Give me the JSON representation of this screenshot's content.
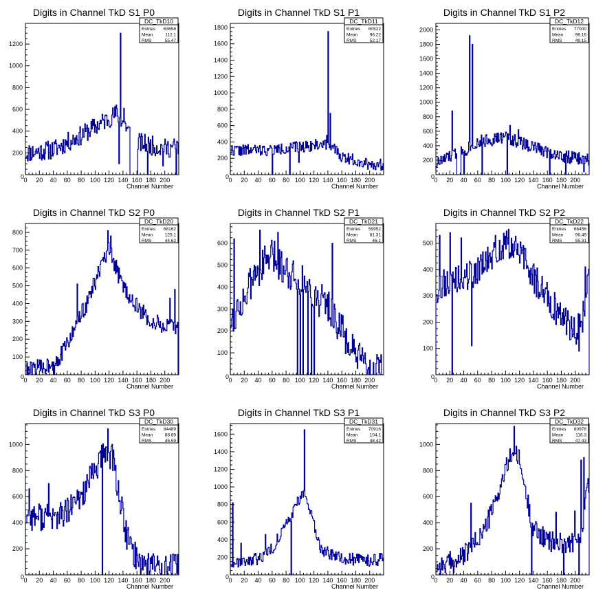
{
  "chart_data": [
    {
      "type": "bar",
      "title": "Digits in Channel TkD S1 P0",
      "xlabel": "Channel Number",
      "ylabel": "",
      "xlim": [
        0,
        220
      ],
      "ylim": [
        0,
        1390
      ],
      "xticks": [
        0,
        20,
        40,
        60,
        80,
        100,
        120,
        140,
        160,
        180,
        200
      ],
      "yticks": [
        200,
        400,
        600,
        800,
        1000,
        1200
      ],
      "stats": {
        "name": "DC_TkD10",
        "rows": [
          [
            "Entries",
            "63658"
          ],
          [
            "Mean",
            "112.1"
          ],
          [
            "RMS",
            "55.47"
          ]
        ]
      },
      "shape": "ramp",
      "fill": 320,
      "knots": [
        [
          0,
          200
        ],
        [
          40,
          230
        ],
        [
          80,
          360
        ],
        [
          120,
          520
        ],
        [
          132,
          560
        ],
        [
          160,
          300
        ],
        [
          200,
          240
        ],
        [
          220,
          260
        ]
      ],
      "spikes": [
        [
          136,
          1300
        ],
        [
          130,
          640
        ],
        [
          141,
          610
        ],
        [
          134,
          100
        ],
        [
          160,
          0
        ],
        [
          175,
          0
        ],
        [
          197,
          80
        ],
        [
          216,
          0
        ]
      ],
      "zeros": [
        [
          150,
          160
        ]
      ],
      "noise": 90,
      "seed": 11
    },
    {
      "type": "bar",
      "title": "Digits in Channel TkD S1 P1",
      "xlabel": "Channel Number",
      "ylabel": "",
      "xlim": [
        0,
        220
      ],
      "ylim": [
        0,
        1850
      ],
      "xticks": [
        0,
        20,
        40,
        60,
        80,
        100,
        120,
        140,
        160,
        180,
        200
      ],
      "yticks": [
        200,
        400,
        600,
        800,
        1000,
        1200,
        1400,
        1600,
        1800
      ],
      "stats": {
        "name": "DC_TkD11",
        "rows": [
          [
            "Entries",
            "60522"
          ],
          [
            "Mean",
            "96.22"
          ],
          [
            "RMS",
            "52.17"
          ]
        ]
      },
      "shape": "flat",
      "fill": 260,
      "knots": [
        [
          0,
          300
        ],
        [
          60,
          300
        ],
        [
          120,
          360
        ],
        [
          140,
          380
        ],
        [
          160,
          220
        ],
        [
          200,
          130
        ],
        [
          220,
          120
        ]
      ],
      "spikes": [
        [
          140,
          1750
        ],
        [
          143,
          750
        ],
        [
          138,
          480
        ],
        [
          60,
          0
        ],
        [
          85,
          0
        ],
        [
          98,
          150
        ]
      ],
      "zeros": [],
      "noise": 70,
      "seed": 22
    },
    {
      "type": "bar",
      "title": "Digits in Channel TkD S1 P2",
      "xlabel": "Channel Number",
      "ylabel": "",
      "xlim": [
        0,
        220
      ],
      "ylim": [
        0,
        2090
      ],
      "xticks": [
        0,
        20,
        40,
        60,
        80,
        100,
        120,
        140,
        160,
        180,
        200
      ],
      "yticks": [
        200,
        400,
        600,
        800,
        1000,
        1200,
        1400,
        1600,
        1800,
        2000
      ],
      "stats": {
        "name": "DC_TkD12",
        "rows": [
          [
            "Entries",
            "77000"
          ],
          [
            "Mean",
            "96.16"
          ],
          [
            "RMS",
            "49.15"
          ]
        ]
      },
      "shape": "hump",
      "fill": 240,
      "knots": [
        [
          0,
          150
        ],
        [
          20,
          250
        ],
        [
          40,
          330
        ],
        [
          60,
          450
        ],
        [
          100,
          520
        ],
        [
          140,
          380
        ],
        [
          180,
          260
        ],
        [
          220,
          200
        ]
      ],
      "spikes": [
        [
          48,
          1920
        ],
        [
          52,
          1800
        ],
        [
          23,
          880
        ],
        [
          106,
          680
        ],
        [
          118,
          620
        ],
        [
          40,
          0
        ],
        [
          66,
          0
        ],
        [
          102,
          0
        ],
        [
          163,
          0
        ],
        [
          186,
          0
        ],
        [
          212,
          40
        ]
      ],
      "zeros": [
        [
          30,
          36
        ]
      ],
      "noise": 90,
      "seed": 33
    },
    {
      "type": "bar",
      "title": "Digits in Channel TkD S2 P0",
      "xlabel": "Channel Number",
      "ylabel": "",
      "xlim": [
        0,
        220
      ],
      "ylim": [
        0,
        850
      ],
      "xticks": [
        0,
        20,
        40,
        60,
        80,
        100,
        120,
        140,
        160,
        180,
        200
      ],
      "yticks": [
        100,
        200,
        300,
        400,
        500,
        600,
        700,
        800
      ],
      "stats": {
        "name": "DC_TkD20",
        "rows": [
          [
            "Entries",
            "68162"
          ],
          [
            "Mean",
            "125.1"
          ],
          [
            "RMS",
            "44.62"
          ]
        ]
      },
      "shape": "bell",
      "fill": 150,
      "knots": [
        [
          0,
          20
        ],
        [
          30,
          50
        ],
        [
          50,
          100
        ],
        [
          70,
          250
        ],
        [
          90,
          420
        ],
        [
          110,
          620
        ],
        [
          120,
          700
        ],
        [
          140,
          500
        ],
        [
          160,
          380
        ],
        [
          180,
          300
        ],
        [
          200,
          270
        ],
        [
          220,
          260
        ]
      ],
      "spikes": [
        [
          118,
          810
        ],
        [
          122,
          780
        ],
        [
          74,
          510
        ],
        [
          41,
          0
        ],
        [
          207,
          430
        ],
        [
          214,
          480
        ],
        [
          219,
          0
        ]
      ],
      "zeros": [],
      "noise": 50,
      "seed": 44
    },
    {
      "type": "bar",
      "title": "Digits in Channel TkD S2 P1",
      "xlabel": "Channel Number",
      "ylabel": "",
      "xlim": [
        0,
        220
      ],
      "ylim": [
        0,
        690
      ],
      "xticks": [
        0,
        20,
        40,
        60,
        80,
        100,
        120,
        140,
        160,
        180,
        200
      ],
      "yticks": [
        100,
        200,
        300,
        400,
        500,
        600
      ],
      "stats": {
        "name": "DC_TkD21",
        "rows": [
          [
            "Entries",
            "59952"
          ],
          [
            "Mean",
            "81.31"
          ],
          [
            "RMS",
            "46.1"
          ]
        ]
      },
      "shape": "hump",
      "fill": 150,
      "knots": [
        [
          0,
          250
        ],
        [
          20,
          350
        ],
        [
          40,
          480
        ],
        [
          60,
          540
        ],
        [
          80,
          480
        ],
        [
          100,
          440
        ],
        [
          120,
          360
        ],
        [
          140,
          320
        ],
        [
          160,
          200
        ],
        [
          180,
          80
        ],
        [
          200,
          20
        ],
        [
          220,
          10
        ]
      ],
      "spikes": [
        [
          5,
          620
        ],
        [
          42,
          660
        ],
        [
          68,
          650
        ],
        [
          146,
          600
        ],
        [
          96,
          0
        ],
        [
          100,
          0
        ],
        [
          104,
          0
        ],
        [
          111,
          0
        ],
        [
          116,
          0
        ],
        [
          120,
          0
        ]
      ],
      "zeros": [],
      "noise": 80,
      "seed": 55
    },
    {
      "type": "bar",
      "title": "Digits in Channel TkD S2 P2",
      "xlabel": "Channel Number",
      "ylabel": "",
      "xlim": [
        0,
        220
      ],
      "ylim": [
        0,
        575
      ],
      "xticks": [
        0,
        20,
        40,
        60,
        80,
        100,
        120,
        140,
        160,
        180,
        200
      ],
      "yticks": [
        100,
        200,
        300,
        400,
        500
      ],
      "stats": {
        "name": "DC_TkD22",
        "rows": [
          [
            "Entries",
            "66456"
          ],
          [
            "Mean",
            "96.49"
          ],
          [
            "RMS",
            "55.31"
          ]
        ]
      },
      "shape": "hump",
      "fill": 120,
      "knots": [
        [
          0,
          330
        ],
        [
          20,
          360
        ],
        [
          40,
          360
        ],
        [
          60,
          400
        ],
        [
          80,
          440
        ],
        [
          100,
          500
        ],
        [
          120,
          470
        ],
        [
          140,
          370
        ],
        [
          160,
          300
        ],
        [
          180,
          220
        ],
        [
          200,
          170
        ],
        [
          210,
          200
        ],
        [
          220,
          400
        ]
      ],
      "spikes": [
        [
          5,
          530
        ],
        [
          23,
          0
        ],
        [
          20,
          540
        ],
        [
          36,
          520
        ],
        [
          51,
          110
        ],
        [
          85,
          530
        ],
        [
          205,
          90
        ],
        [
          214,
          410
        ]
      ],
      "zeros": [],
      "noise": 60,
      "seed": 66
    },
    {
      "type": "bar",
      "title": "Digits in Channel TkD S3 P0",
      "xlabel": "Channel Number",
      "ylabel": "",
      "xlim": [
        0,
        220
      ],
      "ylim": [
        0,
        1160
      ],
      "xticks": [
        0,
        20,
        40,
        60,
        80,
        100,
        120,
        140,
        160,
        180,
        200
      ],
      "yticks": [
        200,
        400,
        600,
        800,
        1000
      ],
      "stats": {
        "name": "DC_TkD30",
        "rows": [
          [
            "Entries",
            "84489"
          ],
          [
            "Mean",
            "88.69"
          ],
          [
            "RMS",
            "45.59"
          ]
        ]
      },
      "shape": "skew",
      "fill": 320,
      "knots": [
        [
          0,
          450
        ],
        [
          20,
          450
        ],
        [
          40,
          430
        ],
        [
          60,
          480
        ],
        [
          80,
          600
        ],
        [
          100,
          800
        ],
        [
          115,
          950
        ],
        [
          125,
          900
        ],
        [
          135,
          600
        ],
        [
          145,
          300
        ],
        [
          160,
          120
        ],
        [
          180,
          80
        ],
        [
          200,
          60
        ],
        [
          220,
          50
        ]
      ],
      "spikes": [
        [
          5,
          660
        ],
        [
          110,
          0
        ],
        [
          118,
          1120
        ],
        [
          33,
          700
        ]
      ],
      "zeros": [],
      "noise": 110,
      "seed": 77
    },
    {
      "type": "bar",
      "title": "Digits in Channel TkD S3 P1",
      "xlabel": "Channel Number",
      "ylabel": "",
      "xlim": [
        0,
        220
      ],
      "ylim": [
        0,
        1720
      ],
      "xticks": [
        0,
        20,
        40,
        60,
        80,
        100,
        120,
        140,
        160,
        180,
        200
      ],
      "yticks": [
        200,
        400,
        600,
        800,
        1000,
        1200,
        1400,
        1600
      ],
      "stats": {
        "name": "DC_TkD31",
        "rows": [
          [
            "Entries",
            "70916"
          ],
          [
            "Mean",
            "104.1"
          ],
          [
            "RMS",
            "48.42"
          ]
        ]
      },
      "shape": "peak",
      "fill": 160,
      "knots": [
        [
          0,
          150
        ],
        [
          40,
          180
        ],
        [
          60,
          300
        ],
        [
          80,
          560
        ],
        [
          95,
          800
        ],
        [
          105,
          950
        ],
        [
          115,
          700
        ],
        [
          130,
          300
        ],
        [
          150,
          200
        ],
        [
          200,
          160
        ],
        [
          220,
          180
        ]
      ],
      "spikes": [
        [
          106,
          1650
        ],
        [
          3,
          820
        ],
        [
          87,
          0
        ],
        [
          15,
          360
        ],
        [
          50,
          460
        ]
      ],
      "zeros": [],
      "noise": 70,
      "seed": 88
    },
    {
      "type": "bar",
      "title": "Digits in Channel TkD S3 P2",
      "xlabel": "Channel Number",
      "ylabel": "",
      "xlim": [
        0,
        220
      ],
      "ylim": [
        0,
        1160
      ],
      "xticks": [
        0,
        20,
        40,
        60,
        80,
        100,
        120,
        140,
        160,
        180,
        200
      ],
      "yticks": [
        200,
        400,
        600,
        800,
        1000
      ],
      "stats": {
        "name": "DC_TkD32",
        "rows": [
          [
            "Entries",
            "80978"
          ],
          [
            "Mean",
            "116.3"
          ],
          [
            "RMS",
            "47.43"
          ]
        ]
      },
      "shape": "bell",
      "fill": 180,
      "knots": [
        [
          0,
          60
        ],
        [
          30,
          100
        ],
        [
          50,
          200
        ],
        [
          70,
          350
        ],
        [
          85,
          550
        ],
        [
          100,
          800
        ],
        [
          110,
          950
        ],
        [
          120,
          880
        ],
        [
          130,
          600
        ],
        [
          140,
          360
        ],
        [
          160,
          260
        ],
        [
          180,
          240
        ],
        [
          200,
          250
        ],
        [
          210,
          300
        ],
        [
          215,
          700
        ]
      ],
      "spikes": [
        [
          112,
          1140
        ],
        [
          20,
          180
        ],
        [
          50,
          550
        ],
        [
          137,
          0
        ],
        [
          172,
          480
        ],
        [
          183,
          0
        ],
        [
          199,
          490
        ],
        [
          208,
          880
        ],
        [
          212,
          900
        ],
        [
          205,
          0
        ]
      ],
      "zeros": [],
      "noise": 80,
      "seed": 99
    }
  ]
}
